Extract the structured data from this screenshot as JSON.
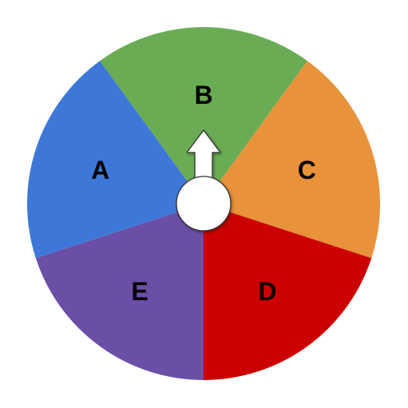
{
  "wheel": {
    "pointer": "up-arrow-icon",
    "sectors": [
      {
        "id": "B",
        "label": "B",
        "color": "#6aac53"
      },
      {
        "id": "C",
        "label": "C",
        "color": "#e8923a"
      },
      {
        "id": "D",
        "label": "D",
        "color": "#cc0000"
      },
      {
        "id": "E",
        "label": "E",
        "color": "#6b4ea6"
      },
      {
        "id": "A",
        "label": "A",
        "color": "#3d78d8"
      }
    ]
  }
}
